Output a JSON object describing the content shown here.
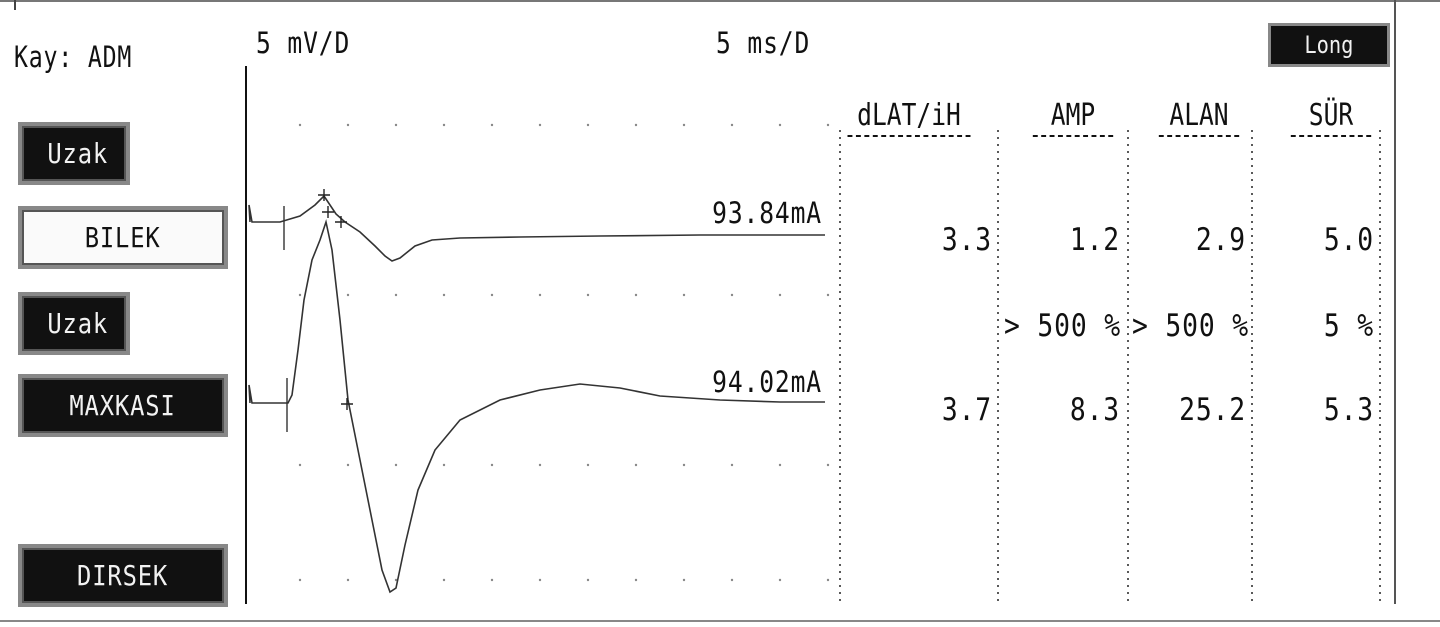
{
  "channel_label": "Kay: ADM",
  "sensitivity": "5 mV/D",
  "sweep": "5 ms/D",
  "mode_button": "Long",
  "left_panel": [
    {
      "label": "Uzak",
      "style": "dark"
    },
    {
      "label": "BILEK",
      "style": "light"
    },
    {
      "label": "Uzak",
      "style": "dark"
    },
    {
      "label": "MAXKASI",
      "style": "dark"
    },
    {
      "label": "DIRSEK",
      "style": "dark"
    }
  ],
  "traces": [
    {
      "stimulus": "93.84mA"
    },
    {
      "stimulus": "94.02mA"
    }
  ],
  "table": {
    "headers": [
      "dLAT/iH",
      "AMP",
      "ALAN",
      "SÜR"
    ],
    "row1": [
      "3.3",
      "1.2",
      "2.9",
      "5.0"
    ],
    "diff": [
      "",
      "> 500 %",
      "> 500 %",
      "5 %"
    ],
    "row2": [
      "3.7",
      "8.3",
      "25.2",
      "5.3"
    ]
  }
}
